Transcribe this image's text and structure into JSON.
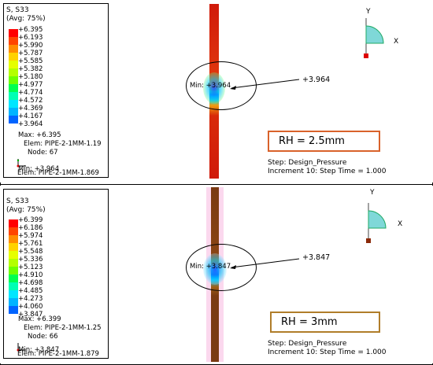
{
  "colors": {
    "legend": [
      "#ff0000",
      "#ff4500",
      "#ff8c00",
      "#ffd200",
      "#e6ff00",
      "#b4ff00",
      "#6eff00",
      "#00ff50",
      "#00ffb4",
      "#00e6ff",
      "#00b4ff",
      "#0064ff",
      "#0000ff"
    ],
    "rh1_border": "#d9622b",
    "rh2_border": "#b07d2a",
    "triad_fill": "#7fd8d8"
  },
  "panels": [
    {
      "legend_title": "S, S33",
      "legend_subtitle": "(Avg: 75%)",
      "ticks": [
        "+6.395",
        "+6.193",
        "+5.990",
        "+5.787",
        "+5.585",
        "+5.382",
        "+5.180",
        "+4.977",
        "+4.774",
        "+4.572",
        "+4.369",
        "+4.167",
        "+3.964"
      ],
      "max_text": "Max: +6.395",
      "max_elem": "Elem: PIPE-2-1MM-1.19",
      "node_text": "Node: 67",
      "min_text": "Min: +3.964",
      "min_elem": "Elem: PIPE-2-1MM-1.869",
      "ellipse_min": "Min: +3.964",
      "leader_value": "+3.964",
      "rh_label": "RH = 2.5mm",
      "step_line": "Step: Design_Pressure",
      "increment_line": "Increment     10: Step Time =      1.000",
      "triad_y": "Y",
      "triad_x": "X",
      "mini_y": "Y",
      "mini_x": "X"
    },
    {
      "legend_title": "S, S33",
      "legend_subtitle": "(Avg: 75%)",
      "ticks": [
        "+6.399",
        "+6.186",
        "+5.974",
        "+5.761",
        "+5.548",
        "+5.336",
        "+5.123",
        "+4.910",
        "+4.698",
        "+4.485",
        "+4.273",
        "+4.060",
        "+3.847"
      ],
      "max_text": "Max: +6.399",
      "max_elem": "Elem: PIPE-2-1MM-1.25",
      "node_text": "Node: 66",
      "min_text": "Min: +3.847",
      "min_elem": "Elem: PIPE-2-1MM-1.879",
      "ellipse_min": "Min: +3.847",
      "leader_value": "+3.847",
      "rh_label": "RH = 3mm",
      "step_line": "Step: Design_Pressure",
      "increment_line": "Increment     10: Step Time =      1.000",
      "triad_y": "Y",
      "triad_x": "X",
      "mini_y": "Y",
      "mini_x": "X"
    }
  ]
}
